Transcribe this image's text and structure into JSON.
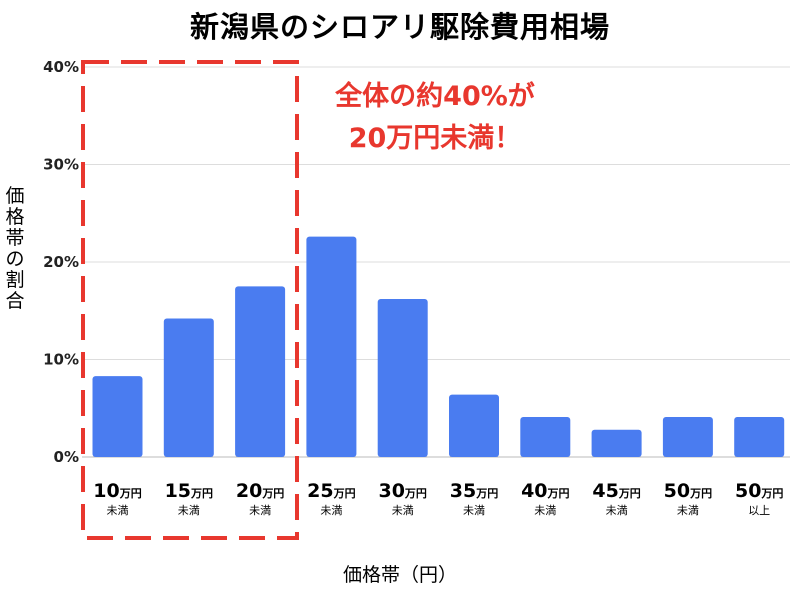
{
  "title": "新潟県のシロアリ駆除費用相場",
  "annotation": {
    "line1": "全体の約40%が",
    "line2": "20万円未満！",
    "color": "#e8372e"
  },
  "bar_color": "#4a7cf0",
  "chart_data": {
    "type": "bar",
    "title": "新潟県のシロアリ駆除費用相場",
    "xlabel": "価格帯（円）",
    "ylabel": "価格帯の割合",
    "ylim": [
      0,
      40
    ],
    "yticks": [
      "0%",
      "10%",
      "20%",
      "30%",
      "40%"
    ],
    "grid": true,
    "categories": [
      {
        "num": "10",
        "unit": "万円",
        "sub": "未満"
      },
      {
        "num": "15",
        "unit": "万円",
        "sub": "未満"
      },
      {
        "num": "20",
        "unit": "万円",
        "sub": "未満"
      },
      {
        "num": "25",
        "unit": "万円",
        "sub": "未満"
      },
      {
        "num": "30",
        "unit": "万円",
        "sub": "未満"
      },
      {
        "num": "35",
        "unit": "万円",
        "sub": "未満"
      },
      {
        "num": "40",
        "unit": "万円",
        "sub": "未満"
      },
      {
        "num": "45",
        "unit": "万円",
        "sub": "未満"
      },
      {
        "num": "50",
        "unit": "万円",
        "sub": "未満"
      },
      {
        "num": "50",
        "unit": "万円",
        "sub": "以上"
      }
    ],
    "values": [
      8.3,
      14.2,
      17.5,
      22.6,
      16.2,
      6.4,
      4.1,
      2.8,
      4.1,
      4.1
    ],
    "highlight": {
      "categories": [
        "10万円未満",
        "15万円未満",
        "20万円未満"
      ],
      "style": "dashed-box"
    }
  }
}
